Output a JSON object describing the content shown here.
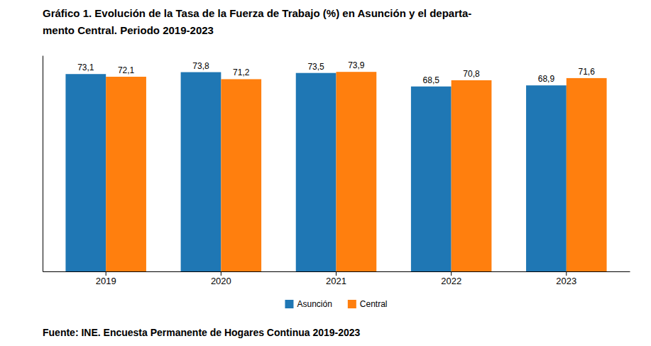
{
  "chart_data": {
    "type": "bar",
    "title": "Gráfico 1. Evolución de la Tasa de la Fuerza de Trabajo (%) en Asunción y el departa-\nmento Central. Periodo 2019-2023",
    "categories": [
      "2019",
      "2020",
      "2021",
      "2022",
      "2023"
    ],
    "series": [
      {
        "name": "Asunción",
        "values": [
          73.1,
          73.8,
          73.5,
          68.5,
          68.9
        ],
        "value_labels": [
          "73,1",
          "73,8",
          "73,5",
          "68,5",
          "68,9"
        ]
      },
      {
        "name": "Central",
        "values": [
          72.1,
          71.2,
          73.9,
          70.8,
          71.6
        ],
        "value_labels": [
          "72,1",
          "71,2",
          "73,9",
          "70,8",
          "71,6"
        ]
      }
    ],
    "ylim": [
      0,
      80
    ],
    "grid": false,
    "legend": "bottom",
    "data_labels": true,
    "tick_labels": "x",
    "annotations": [
      "Fuente: INE. Encuesta Permanente de Hogares Continua 2019-2023"
    ]
  }
}
